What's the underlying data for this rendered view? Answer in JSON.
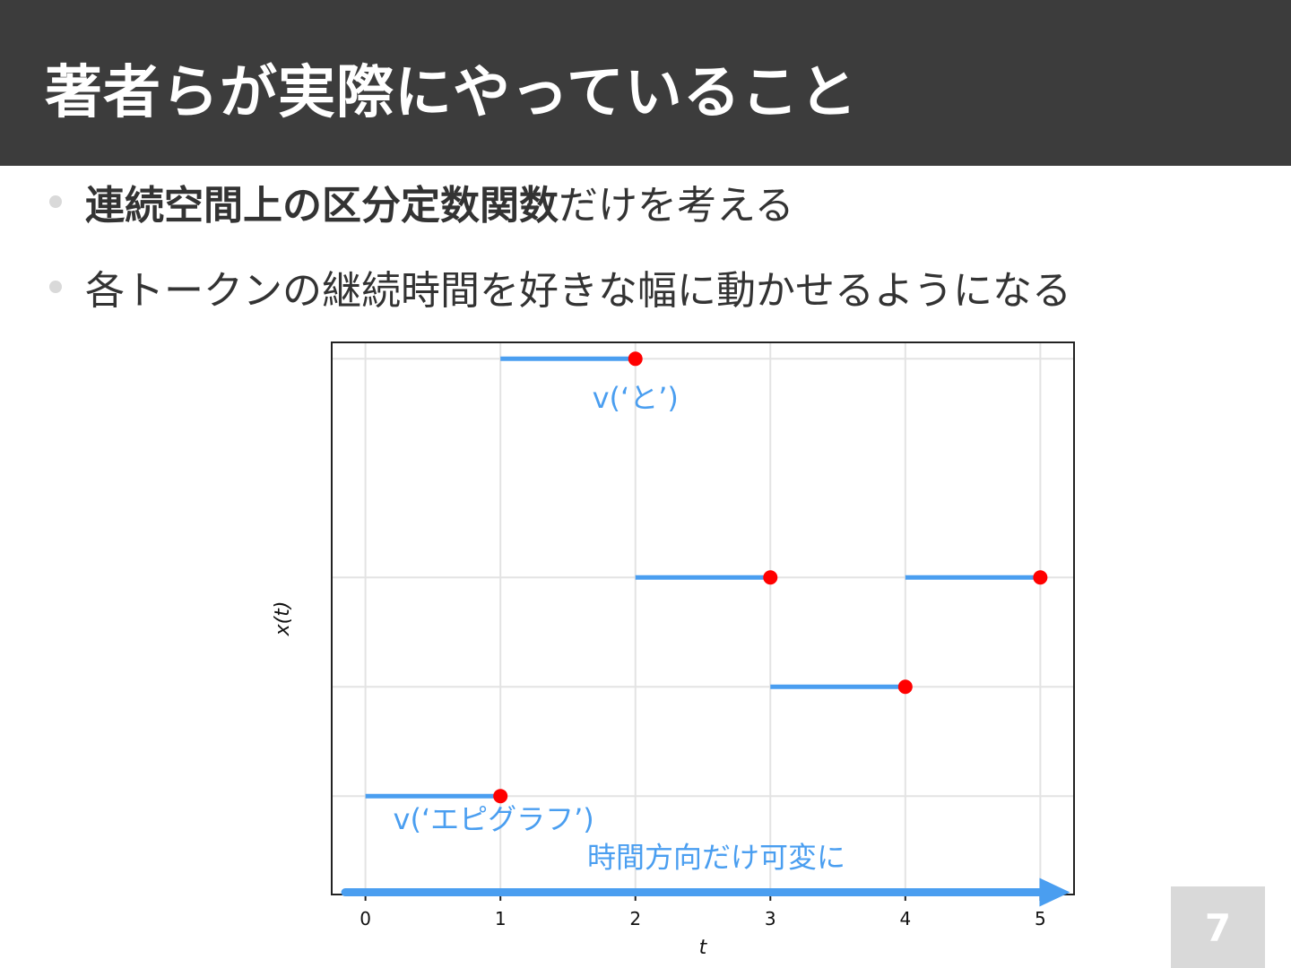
{
  "slide": {
    "title": "著者らが実際にやっていること",
    "bullets": [
      {
        "bold": "連続空間上の区分定数関数",
        "rest": "だけを考える"
      },
      {
        "bold": "",
        "rest": "各トークンの継続時間を好きな幅に動かせるようになる"
      }
    ],
    "page_number": "7"
  },
  "colors": {
    "header_bg": "#3c3c3c",
    "segment": "#4a9ef0",
    "endpoint": "#ff0000",
    "annotation": "#4a9ef0",
    "page_box": "#d9d9d9"
  },
  "chart_data": {
    "type": "line",
    "xlabel": "t",
    "ylabel": "x(t)",
    "xlim": [
      -0.25,
      5.25
    ],
    "ylim": [
      -0.9,
      4.15
    ],
    "xticks": [
      0,
      1,
      2,
      3,
      4,
      5
    ],
    "grid": true,
    "segments": [
      {
        "x0": 0,
        "x1": 1,
        "y": 0
      },
      {
        "x0": 1,
        "x1": 2,
        "y": 4
      },
      {
        "x0": 2,
        "x1": 3,
        "y": 2
      },
      {
        "x0": 3,
        "x1": 4,
        "y": 1
      },
      {
        "x0": 4,
        "x1": 5,
        "y": 2
      }
    ],
    "annotations": [
      {
        "text": "v(‘と’)",
        "x": 2.0,
        "y": 3.55
      },
      {
        "text": "v(‘エピグラフ’)",
        "x": 0.95,
        "y": -0.3
      },
      {
        "text": "時間方向だけ可変に",
        "x": 2.6,
        "y": -0.65
      }
    ],
    "arrow": {
      "x0": -0.15,
      "x1": 5.22,
      "y": -0.88
    }
  }
}
